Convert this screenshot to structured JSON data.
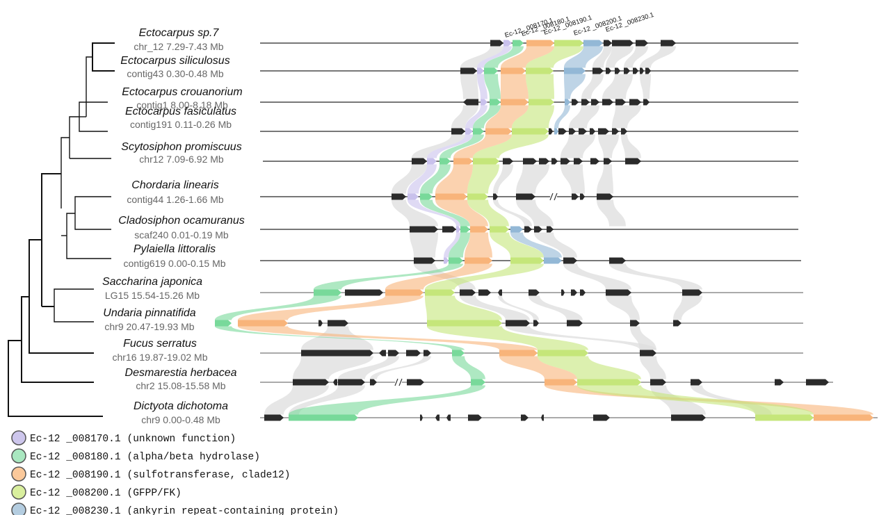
{
  "species": [
    {
      "name": "Ectocarpus sp.7",
      "locus": "chr_12 7.29-7.43 Mb"
    },
    {
      "name": "Ectocarpus siliculosus",
      "locus": "contig43 0.30-0.48 Mb"
    },
    {
      "name": "Ectocarpus crouanorium",
      "locus": "contig1 8.00-8.18 Mb"
    },
    {
      "name": "Ectocarpus fasiculatus",
      "locus": "contig191 0.11-0.26 Mb"
    },
    {
      "name": "Scytosiphon promiscuus",
      "locus": "chr12 7.09-6.92 Mb"
    },
    {
      "name": "Chordaria linearis",
      "locus": "contig44 1.26-1.66 Mb"
    },
    {
      "name": "Cladosiphon ocamuranus",
      "locus": "scaf240 0.01-0.19 Mb"
    },
    {
      "name": "Pylaiella littoralis",
      "locus": "contig619 0.00-0.15 Mb"
    },
    {
      "name": "Saccharina japonica",
      "locus": "LG15 15.54-15.26 Mb"
    },
    {
      "name": "Undaria pinnatifida",
      "locus": "chr9 20.47-19.93 Mb"
    },
    {
      "name": "Fucus serratus",
      "locus": "chr16 19.87-19.02 Mb"
    },
    {
      "name": "Desmarestia herbacea",
      "locus": "chr2 15.08-15.58 Mb"
    },
    {
      "name": "Dictyota dichotoma",
      "locus": "chr9 0.00-0.48 Mb"
    }
  ],
  "gene_labels": [
    "Ec-12 _008170.1",
    "Ec-12 _008180.1",
    "Ec-12 _008190.1",
    "Ec-12 _008200.1",
    "Ec-12 _008230.1"
  ],
  "legend": [
    {
      "id": "Ec-12 _008170.1",
      "desc": "(unknown function)",
      "color": "#cdc6ec"
    },
    {
      "id": "Ec-12 _008180.1",
      "desc": "(alpha/beta hydrolase)",
      "color": "#a9e7c0"
    },
    {
      "id": "Ec-12 _008190.1",
      "desc": "(sulfotransferase, clade12)",
      "color": "#fbc99b"
    },
    {
      "id": "Ec-12 _008200.1",
      "desc": "(GFPP/FK)",
      "color": "#d9ef9e"
    },
    {
      "id": "Ec-12 _008230.1",
      "desc": "(ankyrin repeat-containing protein)",
      "color": "#b4cde0"
    }
  ],
  "colors": {
    "gene_170": "#c9c1ec",
    "gene_180": "#78d99a",
    "gene_190": "#f8b47a",
    "gene_200": "#c5e67a",
    "gene_230": "#93b8d6",
    "other_gene": "#2b2b2b",
    "other_ribbon": "#dedede",
    "chromosome": "#777777",
    "tree": "#111111"
  }
}
